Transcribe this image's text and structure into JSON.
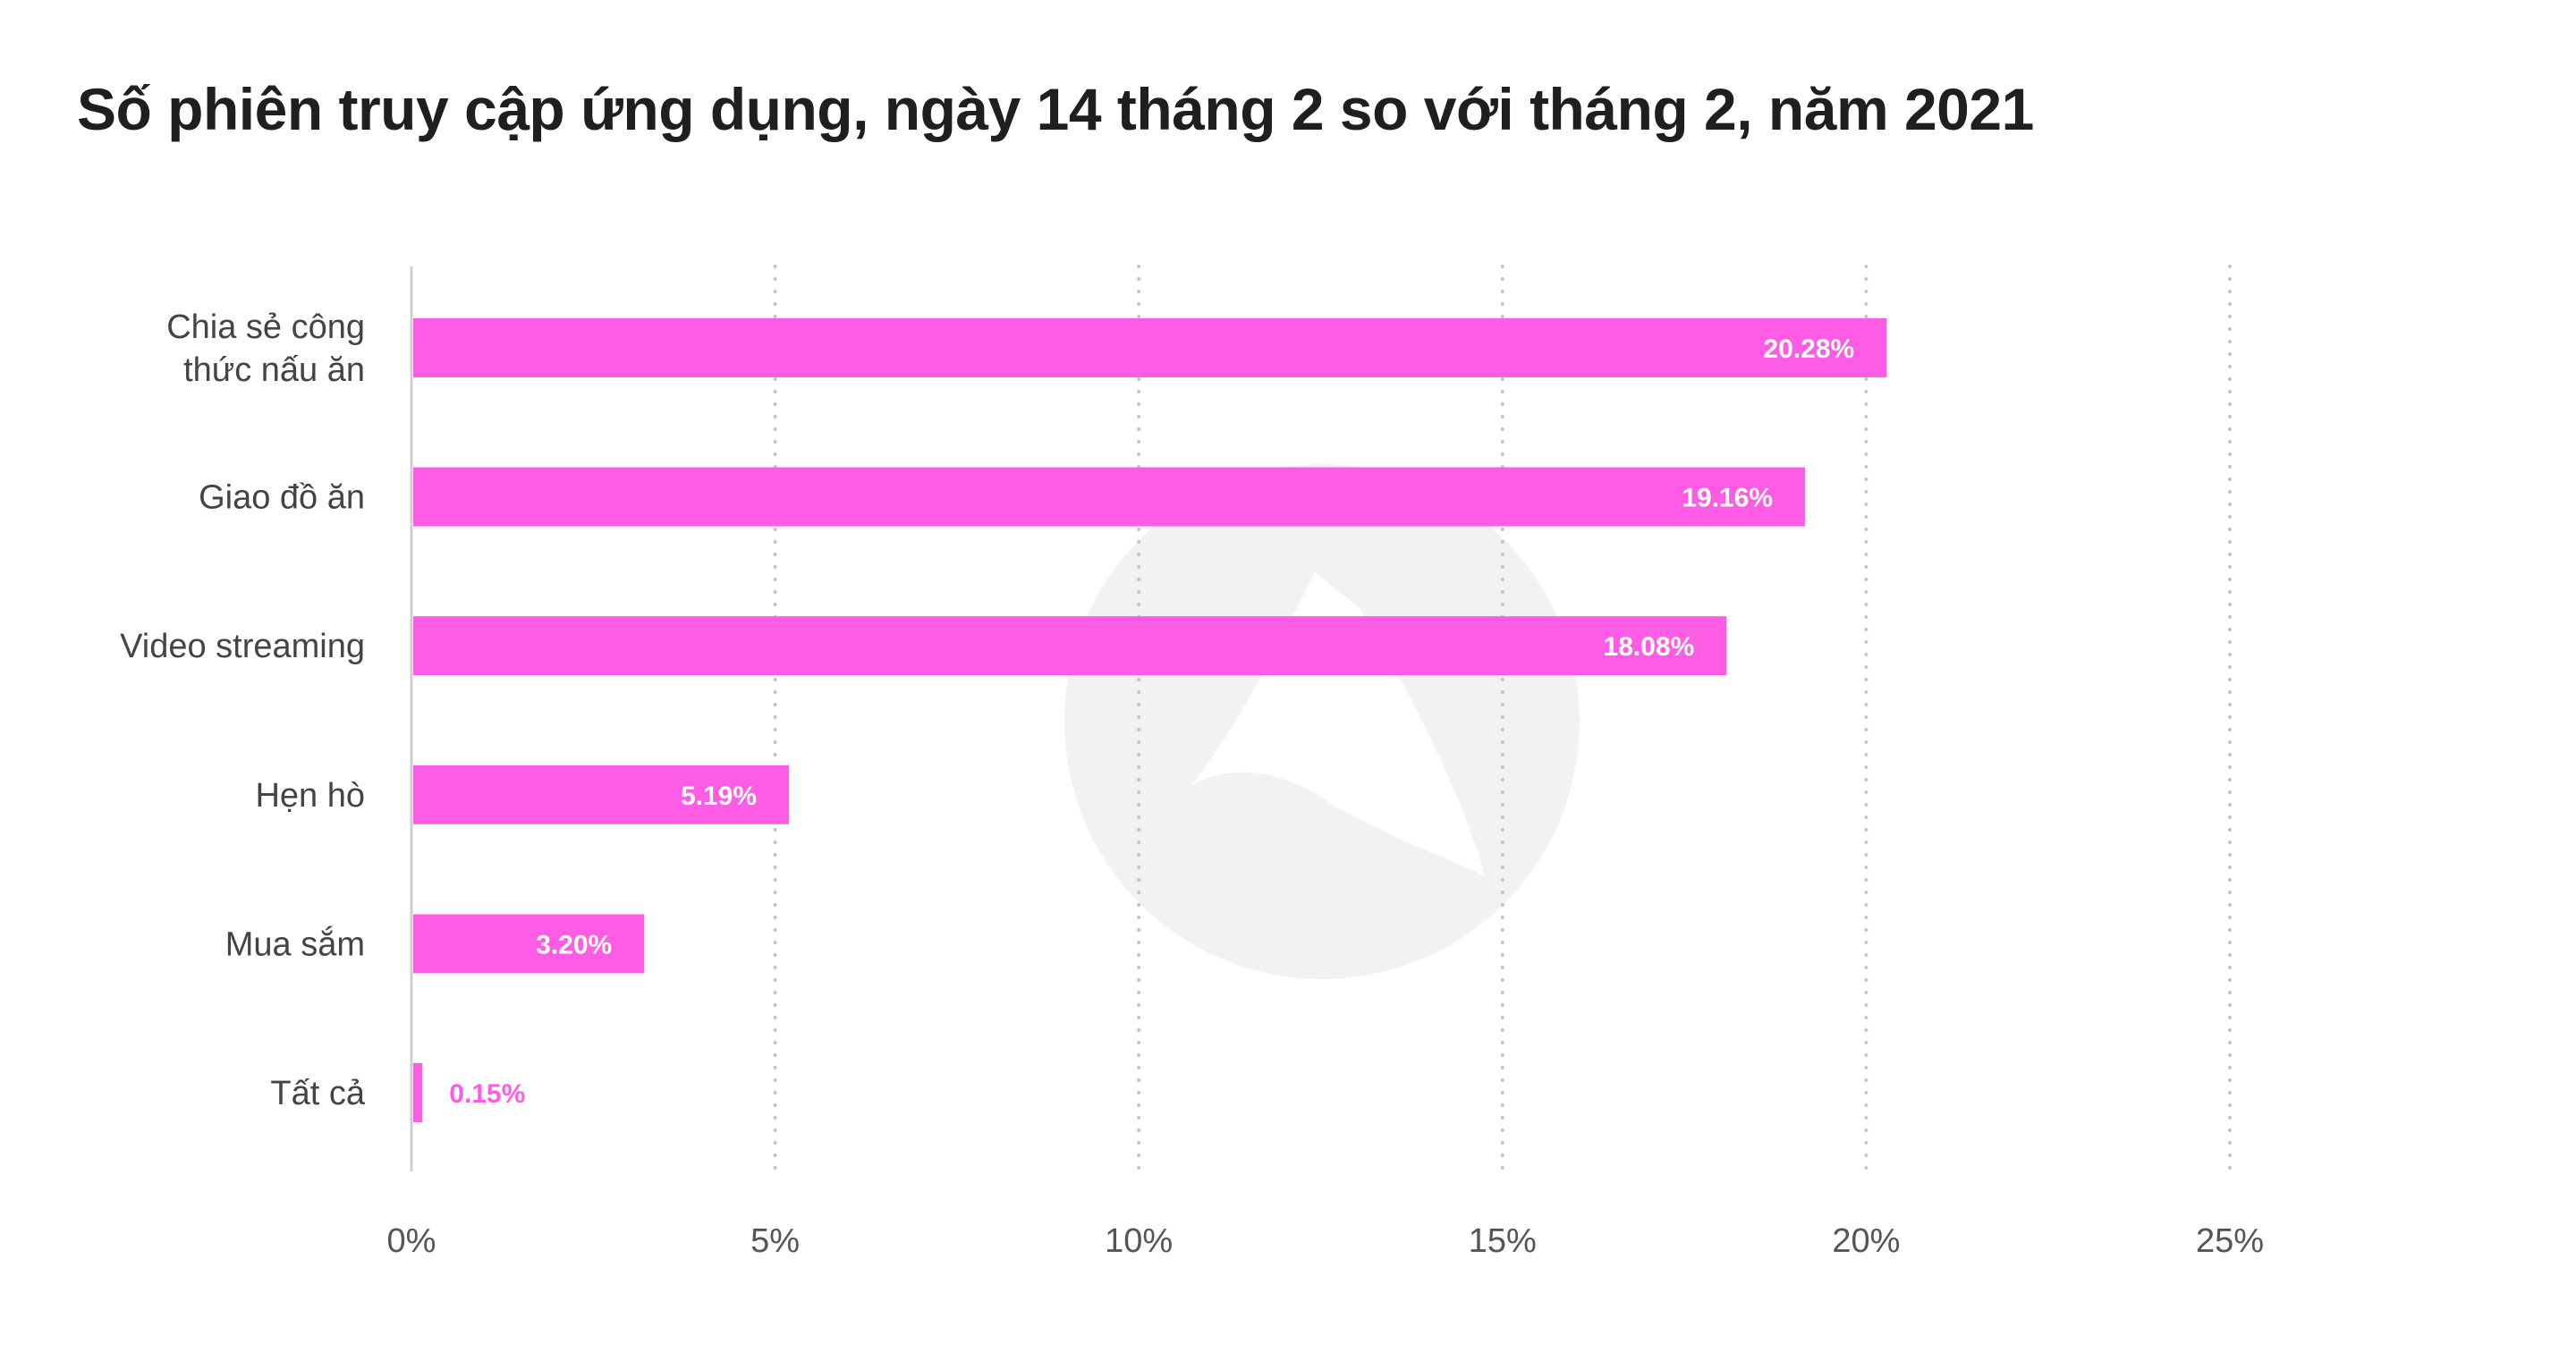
{
  "chart_data": {
    "type": "bar",
    "orientation": "horizontal",
    "title": "Số phiên truy cập ứng dụng, ngày 14 tháng 2 so với tháng 2, năm 2021",
    "xlabel": "",
    "ylabel": "",
    "categories": [
      [
        "Chia sẻ công",
        "thức nấu ăn"
      ],
      [
        "Giao đồ ăn"
      ],
      [
        "Video streaming"
      ],
      [
        "Hẹn hò"
      ],
      [
        "Mua sắm"
      ],
      [
        "Tất cả"
      ]
    ],
    "values": [
      20.28,
      19.16,
      18.08,
      5.19,
      3.2,
      0.15
    ],
    "value_labels": [
      "20.28%",
      "19.16%",
      "18.08%",
      "5.19%",
      "3.20%",
      "0.15%"
    ],
    "xlim": [
      0,
      25
    ],
    "xticks": [
      0,
      5,
      10,
      15,
      20,
      25
    ],
    "xtick_labels": [
      "0%",
      "5%",
      "10%",
      "15%",
      "20%",
      "25%"
    ],
    "grid": "vertical-dotted",
    "legend": "none",
    "colors": {
      "bar": "#ff5ce6",
      "value_label_inside": "#ffffff",
      "value_label_outside": "#ff5ce6",
      "grid": "#c4c4c4",
      "axis": "#cfcfcf",
      "watermark": "#f2f2f2"
    }
  }
}
